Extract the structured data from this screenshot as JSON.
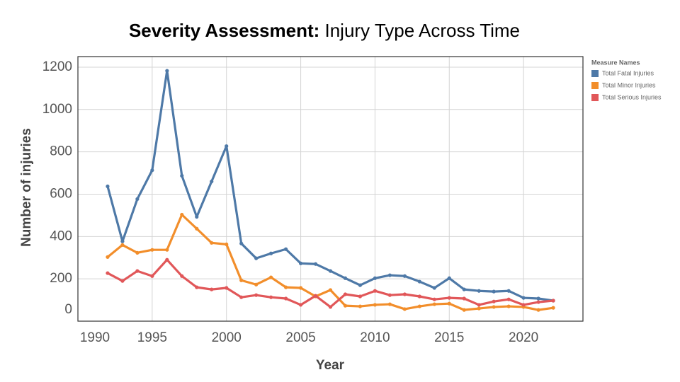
{
  "chart_data": {
    "type": "line",
    "title": {
      "bold": "Severity Assessment:",
      "rest": "Injury Type Across Time"
    },
    "x_label": "Year",
    "y_label": "Number of injuries",
    "legend_title": "Measure Names",
    "legend_position": "top-right",
    "grid": true,
    "xlim": [
      1990,
      2024
    ],
    "ylim": [
      0,
      1250
    ],
    "xticks": [
      1990,
      1995,
      2000,
      2005,
      2010,
      2015,
      2020
    ],
    "yticks": [
      0,
      200,
      400,
      600,
      800,
      1000,
      1200
    ],
    "x": [
      1992,
      1993,
      1994,
      1995,
      1996,
      1997,
      1998,
      1999,
      2000,
      2001,
      2002,
      2003,
      2004,
      2005,
      2006,
      2007,
      2008,
      2009,
      2010,
      2011,
      2012,
      2013,
      2014,
      2015,
      2016,
      2017,
      2018,
      2019,
      2020,
      2021,
      2022
    ],
    "series": [
      {
        "name": "Total Fatal Injuries",
        "color": "#4e79a7",
        "values": [
          637,
          377,
          577,
          713,
          1183,
          687,
          493,
          660,
          827,
          367,
          297,
          320,
          340,
          273,
          270,
          237,
          203,
          170,
          203,
          217,
          213,
          187,
          157,
          203,
          150,
          143,
          140,
          143,
          110,
          107,
          97
        ]
      },
      {
        "name": "Total Minor Injuries",
        "color": "#f28e2b",
        "values": [
          303,
          360,
          323,
          337,
          337,
          503,
          437,
          370,
          363,
          193,
          173,
          207,
          160,
          157,
          117,
          147,
          73,
          70,
          77,
          80,
          57,
          70,
          80,
          83,
          53,
          60,
          67,
          70,
          67,
          53,
          63
        ]
      },
      {
        "name": "Total Serious Injuries",
        "color": "#e15759",
        "values": [
          227,
          190,
          237,
          213,
          290,
          213,
          160,
          150,
          157,
          113,
          123,
          113,
          107,
          77,
          120,
          67,
          127,
          117,
          143,
          123,
          127,
          117,
          103,
          110,
          107,
          77,
          93,
          103,
          77,
          90,
          97
        ]
      }
    ]
  }
}
